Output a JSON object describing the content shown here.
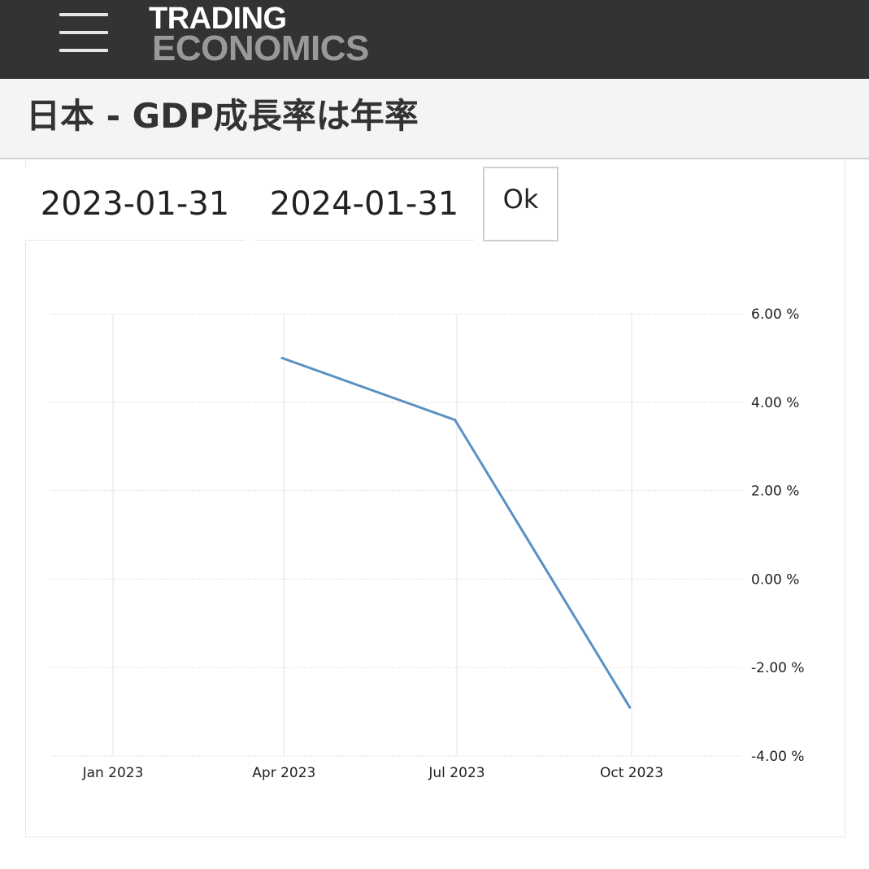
{
  "header": {
    "menu_icon": "hamburger-menu-icon",
    "logo_line1": "TRADING",
    "logo_line2": "ECONOMICS",
    "background": "#333333"
  },
  "page": {
    "title": "日本 - GDP成長率は年率"
  },
  "date_range": {
    "start": "2023-01-31",
    "end": "2024-01-31",
    "ok_label": "Ok"
  },
  "chart_data": {
    "type": "line",
    "title": "",
    "xlabel": "",
    "ylabel": "",
    "x_ticks": [
      "Jan 2023",
      "Apr 2023",
      "Jul 2023",
      "Oct 2023"
    ],
    "y_ticks": [
      "6.00 %",
      "4.00 %",
      "2.00 %",
      "0.00 %",
      "-2.00 %",
      "-4.00 %"
    ],
    "ylim": [
      -4,
      6
    ],
    "grid": true,
    "series": [
      {
        "color": "#5b90c4",
        "points": [
          {
            "x": "2023-03-31",
            "y": 5.0
          },
          {
            "x": "2023-06-30",
            "y": 3.6
          },
          {
            "x": "2023-09-30",
            "y": -2.9
          }
        ]
      }
    ]
  }
}
